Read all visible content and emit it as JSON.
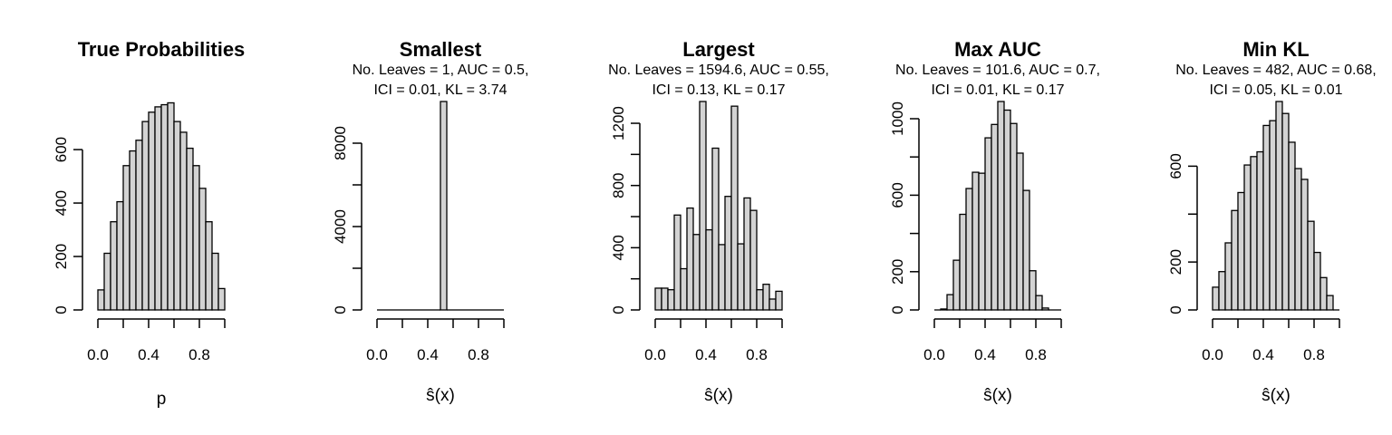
{
  "chart_data": [
    {
      "type": "bar",
      "title": "True Probabilities",
      "subtitle": [],
      "xlabel": "p",
      "ylim": [
        0,
        780
      ],
      "yticks": [
        0,
        200,
        400,
        600
      ],
      "xticks": [
        "0.0",
        "0.4",
        "0.8"
      ],
      "bin_edges": [
        0,
        0.05,
        0.1,
        0.15,
        0.2,
        0.25,
        0.3,
        0.35,
        0.4,
        0.45,
        0.5,
        0.55,
        0.6,
        0.65,
        0.7,
        0.75,
        0.8,
        0.85,
        0.9,
        0.95,
        1.0
      ],
      "values": [
        75,
        212,
        330,
        405,
        540,
        595,
        635,
        705,
        740,
        760,
        768,
        775,
        705,
        665,
        605,
        540,
        455,
        330,
        212,
        80
      ]
    },
    {
      "type": "bar",
      "title": "Smallest",
      "subtitle": [
        "No. Leaves = 1, AUC = 0.5,",
        "ICI = 0.01, KL = 3.74"
      ],
      "xlabel": "ŝ(x)",
      "ylim": [
        0,
        10000
      ],
      "yticks": [
        0,
        4000,
        8000
      ],
      "xticks": [
        "0.0",
        "0.4",
        "0.8"
      ],
      "bin_edges": [
        0,
        0.05,
        0.1,
        0.15,
        0.2,
        0.25,
        0.3,
        0.35,
        0.4,
        0.45,
        0.5,
        0.55,
        0.6,
        0.65,
        0.7,
        0.75,
        0.8,
        0.85,
        0.9,
        0.95,
        1.0
      ],
      "values": [
        0,
        0,
        0,
        0,
        0,
        0,
        0,
        0,
        0,
        0,
        10000,
        0,
        0,
        0,
        0,
        0,
        0,
        0,
        0,
        0
      ]
    },
    {
      "type": "bar",
      "title": "Largest",
      "subtitle": [
        "No. Leaves = 1594.6, AUC = 0.55,",
        "ICI = 0.13, KL = 0.17"
      ],
      "xlabel": "ŝ(x)",
      "ylim": [
        0,
        1340
      ],
      "yticks": [
        0,
        400,
        800,
        1200
      ],
      "xticks": [
        "0.0",
        "0.4",
        "0.8"
      ],
      "bin_edges": [
        0,
        0.05,
        0.1,
        0.15,
        0.2,
        0.25,
        0.3,
        0.35,
        0.4,
        0.45,
        0.5,
        0.55,
        0.6,
        0.65,
        0.7,
        0.75,
        0.8,
        0.85,
        0.9,
        0.95,
        1.0
      ],
      "values": [
        140,
        140,
        130,
        610,
        265,
        655,
        485,
        1340,
        515,
        1040,
        420,
        730,
        1310,
        425,
        720,
        640,
        130,
        165,
        70,
        120
      ]
    },
    {
      "type": "bar",
      "title": "Max AUC",
      "subtitle": [
        "No. Leaves = 101.6, AUC = 0.7,",
        "ICI = 0.01, KL = 0.17"
      ],
      "xlabel": "ŝ(x)",
      "ylim": [
        0,
        1090
      ],
      "yticks": [
        0,
        200,
        600,
        1000
      ],
      "xticks": [
        "0.0",
        "0.4",
        "0.8"
      ],
      "bin_edges": [
        0,
        0.05,
        0.1,
        0.15,
        0.2,
        0.25,
        0.3,
        0.35,
        0.4,
        0.45,
        0.5,
        0.55,
        0.6,
        0.65,
        0.7,
        0.75,
        0.8,
        0.85,
        0.9,
        0.95,
        1.0
      ],
      "values": [
        0,
        5,
        80,
        260,
        500,
        635,
        720,
        715,
        900,
        970,
        1090,
        1045,
        975,
        820,
        625,
        205,
        75,
        10,
        0,
        0
      ]
    },
    {
      "type": "bar",
      "title": "Min KL",
      "subtitle": [
        "No. Leaves = 482, AUC = 0.68,",
        "ICI = 0.05, KL = 0.01"
      ],
      "xlabel": "ŝ(x)",
      "ylim": [
        0,
        870
      ],
      "yticks": [
        0,
        200,
        600
      ],
      "xticks": [
        "0.0",
        "0.4",
        "0.8"
      ],
      "bin_edges": [
        0,
        0.05,
        0.1,
        0.15,
        0.2,
        0.25,
        0.3,
        0.35,
        0.4,
        0.45,
        0.5,
        0.55,
        0.6,
        0.65,
        0.7,
        0.75,
        0.8,
        0.85,
        0.9,
        0.95,
        1.0
      ],
      "values": [
        95,
        160,
        280,
        415,
        490,
        605,
        640,
        660,
        770,
        790,
        870,
        820,
        700,
        590,
        545,
        370,
        240,
        135,
        60,
        0
      ]
    }
  ]
}
